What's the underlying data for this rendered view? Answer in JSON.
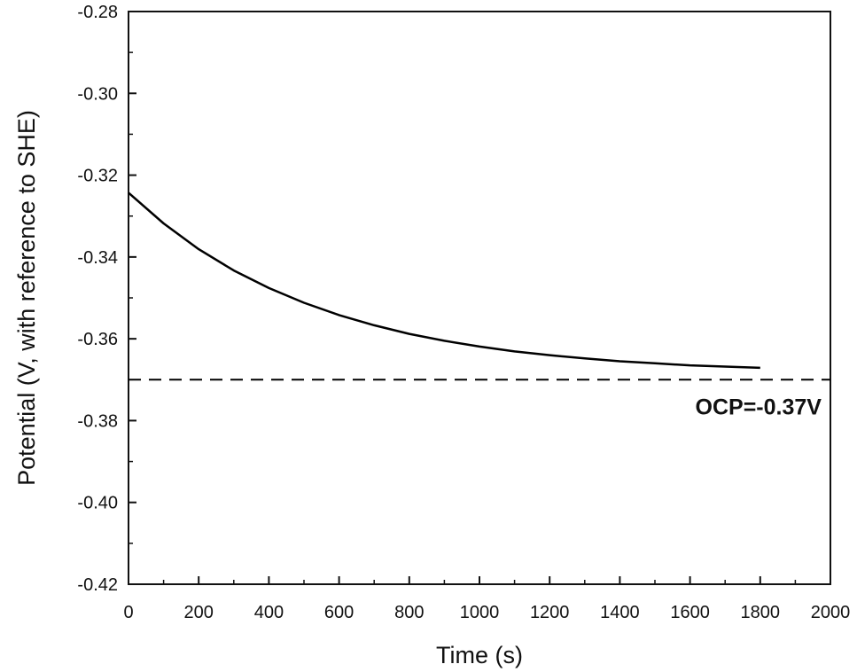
{
  "chart_data": {
    "type": "line",
    "title": "",
    "xlabel": "Time (s)",
    "ylabel": "Potential (V, with reference to SHE)",
    "xlim": [
      0,
      2000
    ],
    "ylim": [
      -0.42,
      -0.28
    ],
    "x_ticks": [
      0,
      200,
      400,
      600,
      800,
      1000,
      1200,
      1400,
      1600,
      1800,
      2000
    ],
    "x_tick_labels": [
      "0",
      "200",
      "400",
      "600",
      "800",
      "1000",
      "1200",
      "1400",
      "1600",
      "1800",
      "2000"
    ],
    "y_ticks": [
      -0.42,
      -0.4,
      -0.38,
      -0.36,
      -0.34,
      -0.32,
      -0.3,
      -0.28
    ],
    "y_tick_labels": [
      "-0.42",
      "-0.40",
      "-0.38",
      "-0.36",
      "-0.34",
      "-0.32",
      "-0.30",
      "-0.28"
    ],
    "grid": false,
    "series": [
      {
        "x": [
          0,
          100,
          200,
          300,
          400,
          500,
          600,
          700,
          800,
          900,
          1000,
          1100,
          1200,
          1300,
          1400,
          1500,
          1600,
          1700,
          1800
        ],
        "y": [
          -0.3243,
          -0.3318,
          -0.3381,
          -0.3433,
          -0.3476,
          -0.3512,
          -0.3542,
          -0.3567,
          -0.3588,
          -0.3605,
          -0.3619,
          -0.3631,
          -0.364,
          -0.3648,
          -0.3655,
          -0.366,
          -0.3665,
          -0.3668,
          -0.3671
        ],
        "color": "#000000",
        "style": "solid"
      }
    ],
    "reference_lines": [
      {
        "axis": "y",
        "value": -0.37,
        "style": "dashed",
        "color": "#000000"
      }
    ],
    "annotations": [
      {
        "text": "OCP=-0.37V",
        "x": 1615,
        "y": -0.3765
      }
    ]
  }
}
